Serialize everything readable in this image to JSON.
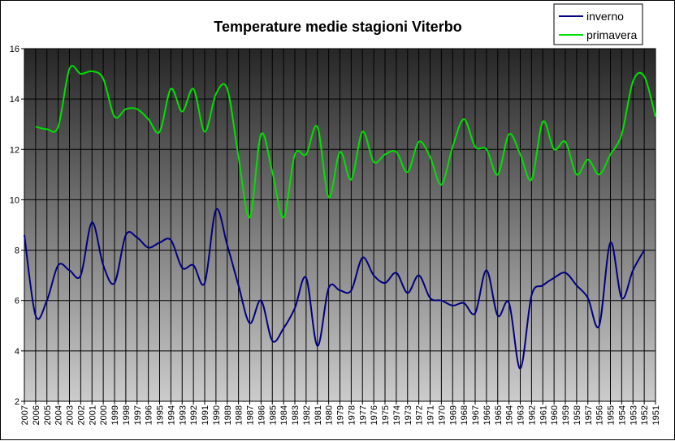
{
  "chart_data": {
    "type": "line",
    "title": "Temperature medie stagioni Viterbo",
    "xlabel": "",
    "ylabel": "",
    "ylim": [
      2,
      16
    ],
    "yticks": [
      2,
      4,
      6,
      8,
      10,
      12,
      14,
      16
    ],
    "grid": true,
    "legend": "top-right",
    "x": [
      "2007",
      "2006",
      "2005",
      "2004",
      "2003",
      "2002",
      "2001",
      "2000",
      "1999",
      "1998",
      "1997",
      "1996",
      "1995",
      "1994",
      "1993",
      "1992",
      "1991",
      "1990",
      "1989",
      "1988",
      "1987",
      "1986",
      "1985",
      "1984",
      "1983",
      "1982",
      "1981",
      "1980",
      "1979",
      "1978",
      "1977",
      "1976",
      "1975",
      "1974",
      "1973",
      "1972",
      "1971",
      "1970",
      "1969",
      "1968",
      "1967",
      "1966",
      "1965",
      "1964",
      "1963",
      "1962",
      "1961",
      "1960",
      "1959",
      "1958",
      "1957",
      "1956",
      "1955",
      "1954",
      "1953",
      "1952",
      "1951"
    ],
    "series": [
      {
        "name": "inverno",
        "color": "#000080",
        "values": [
          8.6,
          5.4,
          6.0,
          7.4,
          7.2,
          7.0,
          9.1,
          7.4,
          6.7,
          8.6,
          8.5,
          8.1,
          8.3,
          8.4,
          7.3,
          7.4,
          6.7,
          9.6,
          8.2,
          6.6,
          5.1,
          6.0,
          4.4,
          4.9,
          5.7,
          6.9,
          4.2,
          6.5,
          6.4,
          6.4,
          7.7,
          7.0,
          6.7,
          7.1,
          6.3,
          7.0,
          6.1,
          6.0,
          5.8,
          5.9,
          5.5,
          7.2,
          5.4,
          5.9,
          3.3,
          6.2,
          6.6,
          6.9,
          7.1,
          6.6,
          6.1,
          5.0,
          8.3,
          6.1,
          7.2,
          8.0,
          null
        ],
        "labels_x_gap": true
      },
      {
        "name": "primavera",
        "color": "#00e000",
        "values": [
          null,
          12.9,
          12.8,
          12.9,
          15.2,
          15.0,
          15.1,
          14.8,
          13.3,
          13.6,
          13.6,
          13.2,
          12.7,
          14.4,
          13.5,
          14.4,
          12.7,
          14.2,
          14.4,
          11.7,
          9.3,
          12.6,
          11.1,
          9.3,
          11.8,
          11.8,
          12.9,
          10.1,
          11.9,
          10.8,
          12.7,
          11.5,
          11.8,
          11.9,
          11.1,
          12.3,
          11.7,
          10.6,
          12.1,
          13.2,
          12.1,
          12.0,
          11.0,
          12.6,
          11.8,
          10.8,
          13.1,
          12.0,
          12.3,
          11.0,
          11.6,
          11.0,
          11.8,
          12.6,
          14.7,
          14.9,
          13.3
        ]
      }
    ]
  }
}
